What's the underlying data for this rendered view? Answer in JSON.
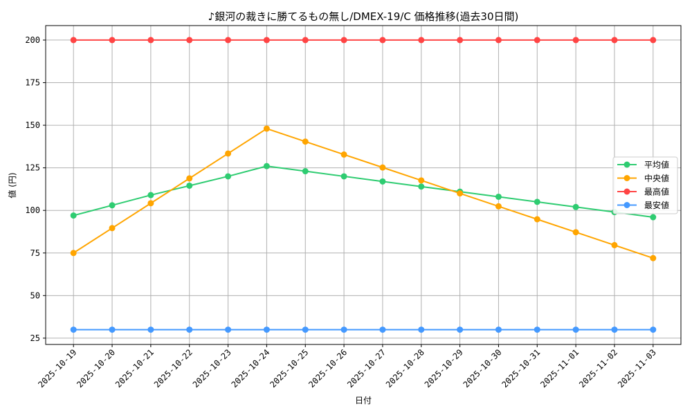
{
  "chart_data": {
    "type": "line",
    "title": "♪銀河の裁きに勝てるもの無し/DMEX-19/C 価格推移(過去30日間)",
    "xlabel": "日付",
    "ylabel": "値 (円)",
    "categories": [
      "2025-10-19",
      "2025-10-20",
      "2025-10-21",
      "2025-10-22",
      "2025-10-23",
      "2025-10-24",
      "2025-10-25",
      "2025-10-26",
      "2025-10-27",
      "2025-10-28",
      "2025-10-29",
      "2025-10-30",
      "2025-10-31",
      "2025-11-01",
      "2025-11-02",
      "2025-11-03"
    ],
    "ylim": [
      21.3,
      208.5
    ],
    "yticks": [
      25,
      50,
      75,
      100,
      125,
      150,
      175,
      200
    ],
    "grid": true,
    "legend_position": "center-right",
    "series": [
      {
        "name": "平均値",
        "color": "#2ecc71",
        "values": [
          97,
          103,
          109,
          114.5,
          120,
          126,
          123,
          120,
          117,
          114,
          111,
          108,
          105,
          102,
          99,
          96
        ]
      },
      {
        "name": "中央値",
        "color": "#ffa500",
        "values": [
          75,
          89.6,
          104.2,
          118.8,
          133.4,
          148,
          140.4,
          132.8,
          125.2,
          117.6,
          110,
          102.4,
          94.8,
          87.2,
          79.6,
          72
        ]
      },
      {
        "name": "最高値",
        "color": "#ff4444",
        "values": [
          200,
          200,
          200,
          200,
          200,
          200,
          200,
          200,
          200,
          200,
          200,
          200,
          200,
          200,
          200,
          200
        ]
      },
      {
        "name": "最安値",
        "color": "#4499ff",
        "values": [
          30,
          30,
          30,
          30,
          30,
          30,
          30,
          30,
          30,
          30,
          30,
          30,
          30,
          30,
          30,
          30
        ]
      }
    ]
  }
}
